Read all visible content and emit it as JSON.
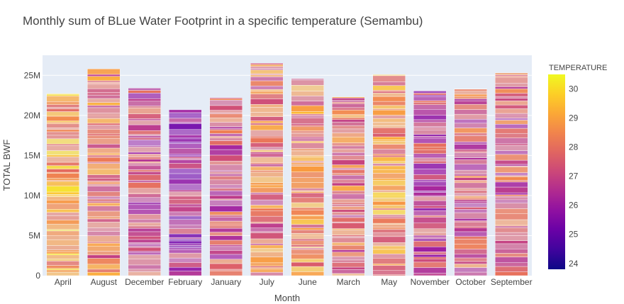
{
  "chart_data": {
    "type": "bar",
    "title": "Monthly sum of BLue Water Footprint in a specific temperature (Semambu)",
    "xlabel": "Month",
    "ylabel": "TOTAL BWF",
    "categories": [
      "April",
      "August",
      "December",
      "February",
      "January",
      "July",
      "June",
      "March",
      "May",
      "November",
      "October",
      "September"
    ],
    "values": [
      22700000,
      25800000,
      23400000,
      20700000,
      22200000,
      26500000,
      24600000,
      22300000,
      25100000,
      23100000,
      23300000,
      25300000
    ],
    "ylim": [
      0,
      27500000
    ],
    "yticks": [
      {
        "value": 0,
        "label": "0"
      },
      {
        "value": 5000000,
        "label": "5M"
      },
      {
        "value": 10000000,
        "label": "10M"
      },
      {
        "value": 15000000,
        "label": "15M"
      },
      {
        "value": 20000000,
        "label": "20M"
      },
      {
        "value": 25000000,
        "label": "25M"
      }
    ],
    "grid": true,
    "plot_background": "#e5ecf6",
    "colorbar": {
      "title": "TEMPERATURE",
      "range": [
        23.8,
        30.5
      ],
      "ticks": [
        24,
        25,
        26,
        27,
        28,
        29,
        30
      ],
      "colorscale": "plasma"
    },
    "dominant_temperature": [
      29.0,
      28.0,
      27.2,
      26.3,
      27.3,
      28.0,
      28.3,
      27.8,
      28.6,
      26.9,
      27.5,
      27.3
    ]
  }
}
